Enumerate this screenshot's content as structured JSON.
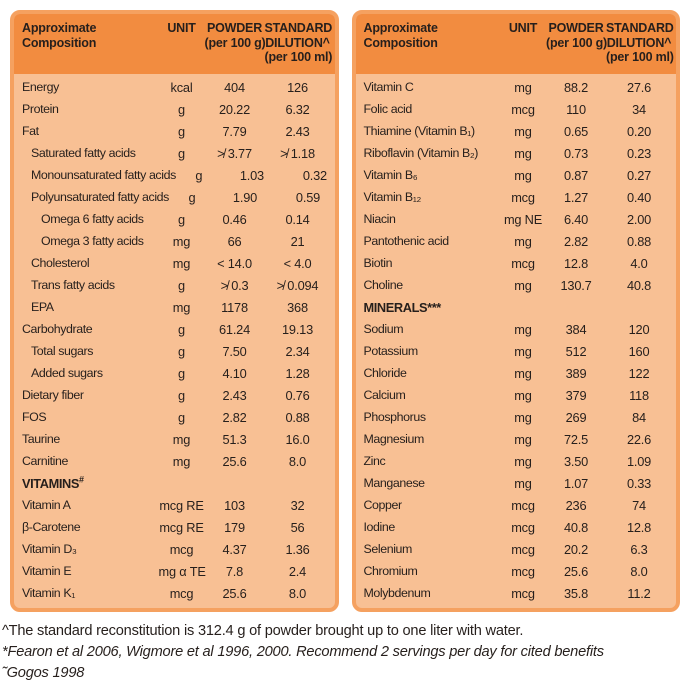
{
  "colors": {
    "header_bg": "#F28C40",
    "body_bg": "#F8C094",
    "border": "#F5A160",
    "text": "#261F1C"
  },
  "header": {
    "composition": "Approximate Composition",
    "unit": "UNIT",
    "powder_line1": "POWDER",
    "powder_line2": "(per 100 g)",
    "standard_line1": "STANDARD",
    "standard_line2": "DILUTION^",
    "standard_line3": "(per 100 ml)"
  },
  "left_table": {
    "rows": [
      {
        "name": "Energy",
        "unit": "kcal",
        "powder": "404",
        "standard": "126",
        "indent": 0
      },
      {
        "name": "Protein",
        "unit": "g",
        "powder": "20.22",
        "standard": "6.32",
        "indent": 0
      },
      {
        "name": "Fat",
        "unit": "g",
        "powder": "7.79",
        "standard": "2.43",
        "indent": 0
      },
      {
        "name": "Saturated fatty acids",
        "unit": "g",
        "powder": "≯ 3.77",
        "standard": "≯ 1.18",
        "indent": 1
      },
      {
        "name": "Monounsaturated fatty acids",
        "unit": "g",
        "powder": "1.03",
        "standard": "0.32",
        "indent": 1
      },
      {
        "name": "Polyunsaturated fatty acids",
        "unit": "g",
        "powder": "1.90",
        "standard": "0.59",
        "indent": 1
      },
      {
        "name": "Omega 6 fatty acids",
        "unit": "g",
        "powder": "0.46",
        "standard": "0.14",
        "indent": 2
      },
      {
        "name": "Omega 3 fatty acids",
        "unit": "mg",
        "powder": "66",
        "standard": "21",
        "indent": 2
      },
      {
        "name": "Cholesterol",
        "unit": "mg",
        "powder": "< 14.0",
        "standard": "< 4.0",
        "indent": 1
      },
      {
        "name": "Trans fatty acids",
        "unit": "g",
        "powder": "≯ 0.3",
        "standard": "≯ 0.094",
        "indent": 1
      },
      {
        "name": "EPA",
        "unit": "mg",
        "powder": "1178",
        "standard": "368",
        "indent": 1
      },
      {
        "name": "Carbohydrate",
        "unit": "g",
        "powder": "61.24",
        "standard": "19.13",
        "indent": 0
      },
      {
        "name": "Total sugars",
        "unit": "g",
        "powder": "7.50",
        "standard": "2.34",
        "indent": 1
      },
      {
        "name": "Added sugars",
        "unit": "g",
        "powder": "4.10",
        "standard": "1.28",
        "indent": 1
      },
      {
        "name": "Dietary fiber",
        "unit": "g",
        "powder": "2.43",
        "standard": "0.76",
        "indent": 0
      },
      {
        "name": "FOS",
        "unit": "g",
        "powder": "2.82",
        "standard": "0.88",
        "indent": 0
      },
      {
        "name": "Taurine",
        "unit": "mg",
        "powder": "51.3",
        "standard": "16.0",
        "indent": 0
      },
      {
        "name": "Carnitine",
        "unit": "mg",
        "powder": "25.6",
        "standard": "8.0",
        "indent": 0
      },
      {
        "name": "VITAMINS",
        "marker": "#",
        "section": true
      },
      {
        "name": "Vitamin A",
        "unit": "mcg RE",
        "powder": "103",
        "standard": "32",
        "indent": 0
      },
      {
        "name": "β-Carotene",
        "unit": "mcg RE",
        "powder": "179",
        "standard": "56",
        "indent": 0
      },
      {
        "name": "Vitamin D₃",
        "unit": "mcg",
        "powder": "4.37",
        "standard": "1.36",
        "indent": 0
      },
      {
        "name": "Vitamin E",
        "unit": "mg α TE",
        "powder": "7.8",
        "standard": "2.4",
        "indent": 0
      },
      {
        "name": "Vitamin K₁",
        "unit": "mcg",
        "powder": "25.6",
        "standard": "8.0",
        "indent": 0
      }
    ]
  },
  "right_table": {
    "rows": [
      {
        "name": "Vitamin C",
        "unit": "mg",
        "powder": "88.2",
        "standard": "27.6",
        "indent": 0
      },
      {
        "name": "Folic acid",
        "unit": "mcg",
        "powder": "110",
        "standard": "34",
        "indent": 0
      },
      {
        "name": "Thiamine (Vitamin B₁)",
        "unit": "mg",
        "powder": "0.65",
        "standard": "0.20",
        "indent": 0
      },
      {
        "name": "Riboflavin (Vitamin B₂)",
        "unit": "mg",
        "powder": "0.73",
        "standard": "0.23",
        "indent": 0
      },
      {
        "name": "Vitamin B₆",
        "unit": "mg",
        "powder": "0.87",
        "standard": "0.27",
        "indent": 0
      },
      {
        "name": "Vitamin B₁₂",
        "unit": "mcg",
        "powder": "1.27",
        "standard": "0.40",
        "indent": 0
      },
      {
        "name": "Niacin",
        "unit": "mg NE",
        "powder": "6.40",
        "standard": "2.00",
        "indent": 0
      },
      {
        "name": "Pantothenic acid",
        "unit": "mg",
        "powder": "2.82",
        "standard": "0.88",
        "indent": 0
      },
      {
        "name": "Biotin",
        "unit": "mcg",
        "powder": "12.8",
        "standard": "4.0",
        "indent": 0
      },
      {
        "name": "Choline",
        "unit": "mg",
        "powder": "130.7",
        "standard": "40.8",
        "indent": 0
      },
      {
        "name": "MINERALS***",
        "section": true
      },
      {
        "name": "Sodium",
        "unit": "mg",
        "powder": "384",
        "standard": "120",
        "indent": 0
      },
      {
        "name": "Potassium",
        "unit": "mg",
        "powder": "512",
        "standard": "160",
        "indent": 0
      },
      {
        "name": "Chloride",
        "unit": "mg",
        "powder": "389",
        "standard": "122",
        "indent": 0
      },
      {
        "name": "Calcium",
        "unit": "mg",
        "powder": "379",
        "standard": "118",
        "indent": 0
      },
      {
        "name": "Phosphorus",
        "unit": "mg",
        "powder": "269",
        "standard": "84",
        "indent": 0
      },
      {
        "name": "Magnesium",
        "unit": "mg",
        "powder": "72.5",
        "standard": "22.6",
        "indent": 0
      },
      {
        "name": "Zinc",
        "unit": "mg",
        "powder": "3.50",
        "standard": "1.09",
        "indent": 0
      },
      {
        "name": "Manganese",
        "unit": "mg",
        "powder": "1.07",
        "standard": "0.33",
        "indent": 0
      },
      {
        "name": "Copper",
        "unit": "mcg",
        "powder": "236",
        "standard": "74",
        "indent": 0
      },
      {
        "name": "Iodine",
        "unit": "mcg",
        "powder": "40.8",
        "standard": "12.8",
        "indent": 0
      },
      {
        "name": "Selenium",
        "unit": "mcg",
        "powder": "20.2",
        "standard": "6.3",
        "indent": 0
      },
      {
        "name": "Chromium",
        "unit": "mcg",
        "powder": "25.6",
        "standard": "8.0",
        "indent": 0
      },
      {
        "name": "Molybdenum",
        "unit": "mcg",
        "powder": "35.8",
        "standard": "11.2",
        "indent": 0
      }
    ]
  },
  "footnotes": [
    {
      "text": "^The standard reconstitution is 312.4 g of powder brought up to one liter with water.",
      "italic": false
    },
    {
      "text": "*Fearon et al 2006, Wigmore et al 1996, 2000. Recommend 2 servings per day for cited benefits",
      "italic": true
    },
    {
      "text": "˜Gogos 1998",
      "italic": true
    }
  ]
}
